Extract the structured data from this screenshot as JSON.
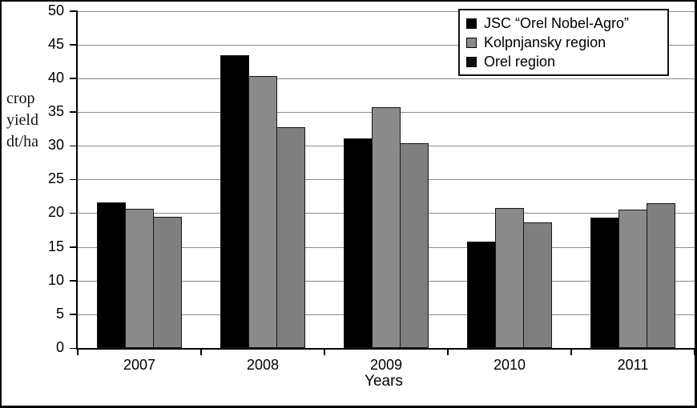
{
  "chart_data": {
    "type": "bar",
    "title": "",
    "xlabel": "Years",
    "ylabel": "crop yield dt/ha",
    "ylabel_lines": [
      "crop",
      "yield",
      "dt/ha"
    ],
    "categories": [
      "2007",
      "2008",
      "2009",
      "2010",
      "2011"
    ],
    "series": [
      {
        "name": "JSC “Orel Nobel-Agro”",
        "bar_color": "#000000",
        "marker_color": "#000000",
        "values": [
          21.6,
          43.4,
          31.1,
          15.8,
          19.3
        ]
      },
      {
        "name": "Kolpnjansky region",
        "bar_color": "#8a8a8a",
        "marker_color": "#8a8a8a",
        "values": [
          20.6,
          40.3,
          35.7,
          20.7,
          20.5
        ]
      },
      {
        "name": "Orel region",
        "bar_color": "#7f7f7f",
        "marker_color": "#0d0d0d",
        "values": [
          19.4,
          32.7,
          30.4,
          18.6,
          21.5
        ]
      }
    ],
    "yticks": [
      0,
      5,
      10,
      15,
      20,
      25,
      30,
      35,
      40,
      45,
      50
    ],
    "ylim": [
      0,
      50
    ],
    "grid": true,
    "legend_position": "top-right",
    "colors": {
      "gridline": "#8c8c8c",
      "axis": "#000000",
      "bar_border": "#161616",
      "background": "#ffffff",
      "frame_border": "#000000"
    }
  }
}
